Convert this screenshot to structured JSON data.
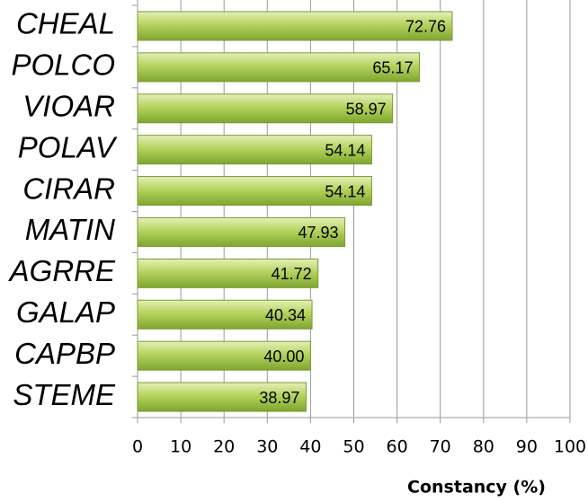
{
  "chart_data": {
    "type": "barh",
    "categories": [
      "CHEAL",
      "POLCO",
      "VIOAR",
      "POLAV",
      "CIRAR",
      "MATIN",
      "AGRRE",
      "GALAP",
      "CAPBP",
      "STEME"
    ],
    "values": [
      72.76,
      65.17,
      58.97,
      54.14,
      54.14,
      47.93,
      41.72,
      40.34,
      40.0,
      38.97
    ],
    "value_labels": [
      "72.76",
      "65.17",
      "58.97",
      "54.14",
      "54.14",
      "47.93",
      "41.72",
      "40.34",
      "40.00",
      "38.97"
    ],
    "color": "#9bc044",
    "xlabel": "Constancy (%)",
    "xlim": [
      0,
      100
    ],
    "xticks": [
      0,
      10,
      20,
      30,
      40,
      50,
      60,
      70,
      80,
      90,
      100
    ],
    "grid": true
  }
}
